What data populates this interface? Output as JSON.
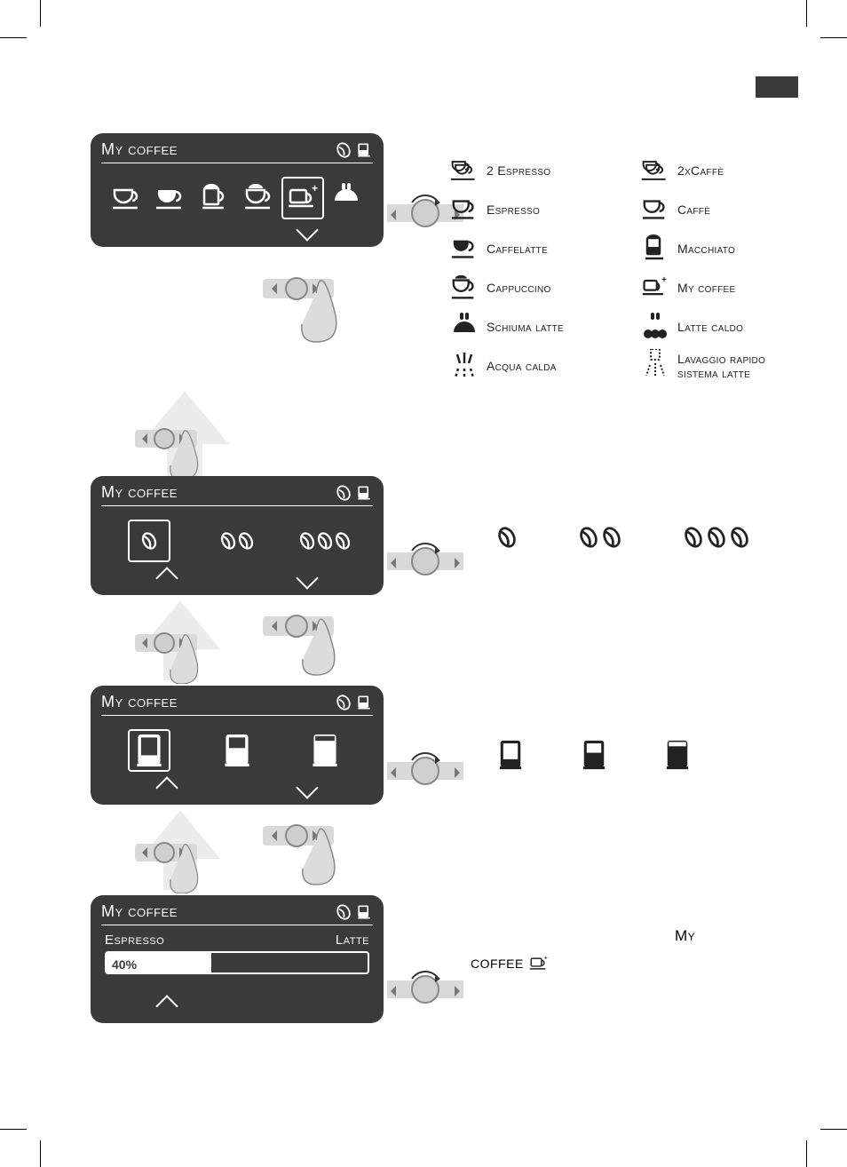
{
  "colors": {
    "panel_bg": "#3a3a3a",
    "fg": "#ffffff",
    "page_bg": "#ffffff",
    "gray": "#bdbdbd",
    "text": "#222222"
  },
  "panel_title": "My coffee",
  "panels": {
    "p1": {
      "selected_index": 4
    },
    "p2": {
      "selected_index": 0
    },
    "p3": {
      "selected_index": 0
    }
  },
  "panel4": {
    "sub_left": "Espresso",
    "sub_right": "Latte",
    "percent_label": "40%",
    "percent_value": 40
  },
  "legend": {
    "col1": [
      {
        "icon": "cup-double",
        "label": "2 Espresso"
      },
      {
        "icon": "cup",
        "label": "Espresso"
      },
      {
        "icon": "cup-latte",
        "label": "Caffelatte"
      },
      {
        "icon": "cup-foam",
        "label": "Cappuccino"
      },
      {
        "icon": "foam-steam",
        "label": "Schiuma latte"
      },
      {
        "icon": "hot-water",
        "label": "Acqua calda"
      }
    ],
    "col2": [
      {
        "icon": "cup-double",
        "label": "2xCaffè"
      },
      {
        "icon": "cup",
        "label": "Caffè"
      },
      {
        "icon": "cup-macchiato",
        "label": "Macchiato"
      },
      {
        "icon": "cup-plus",
        "label": "My coffee"
      },
      {
        "icon": "hot-milk",
        "label": "Latte caldo"
      },
      {
        "icon": "rinse",
        "label": "Lavaggio rapido sistema latte"
      }
    ]
  },
  "strength": {
    "levels": [
      1,
      2,
      3
    ]
  },
  "fill": {
    "levels": [
      "low",
      "mid",
      "high"
    ]
  },
  "text": {
    "my": "My",
    "coffee_icon_label": "coffee"
  }
}
